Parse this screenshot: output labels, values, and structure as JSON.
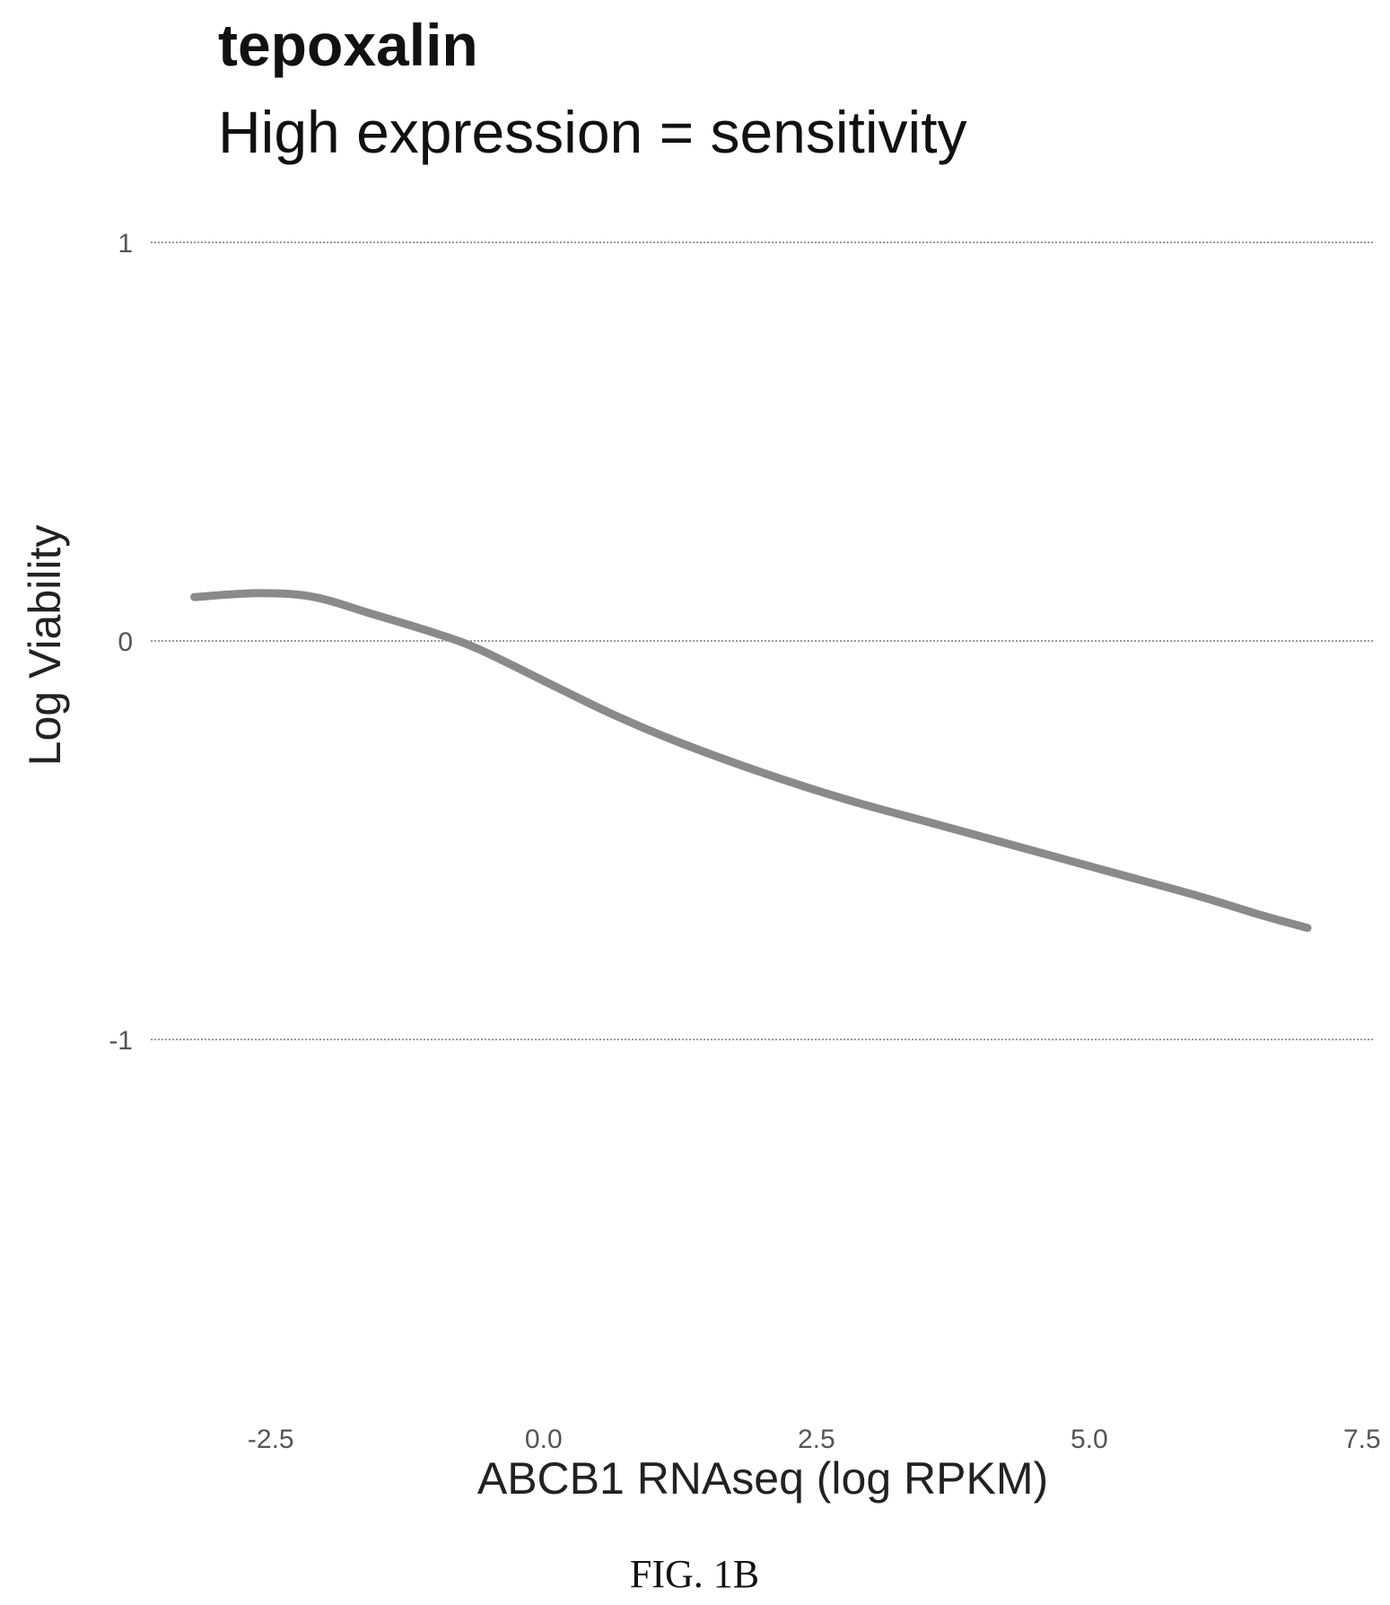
{
  "chart_data": {
    "type": "line",
    "title": "tepoxalin",
    "subtitle": "High expression = sensitivity",
    "xlabel": "ABCB1 RNAseq (log RPKM)",
    "ylabel": "Log Viability",
    "xlim": [
      -3.6,
      7.6
    ],
    "ylim": [
      -1,
      1
    ],
    "x_ticks": [
      -2.5,
      0.0,
      2.5,
      5.0,
      7.5
    ],
    "x_tick_labels": [
      "-2.5",
      "0.0",
      "2.5",
      "5.0",
      "7.5"
    ],
    "y_ticks": [
      1,
      0,
      -1
    ],
    "y_tick_labels": [
      "1",
      "0",
      "-1"
    ],
    "grid": "horizontal",
    "series": [
      {
        "values_x": [
          -3.2,
          -2.6,
          -2.1,
          -1.6,
          -1.0,
          -0.6,
          0.0,
          0.6,
          1.2,
          2.0,
          2.8,
          3.6,
          4.4,
          5.2,
          6.0,
          6.6,
          7.0
        ],
        "values_y": [
          0.11,
          0.12,
          0.11,
          0.07,
          0.02,
          -0.02,
          -0.1,
          -0.18,
          -0.25,
          -0.33,
          -0.4,
          -0.46,
          -0.52,
          -0.58,
          -0.64,
          -0.69,
          -0.72
        ],
        "color": "#8a8a8a"
      }
    ]
  },
  "caption": "FIG. 1B"
}
